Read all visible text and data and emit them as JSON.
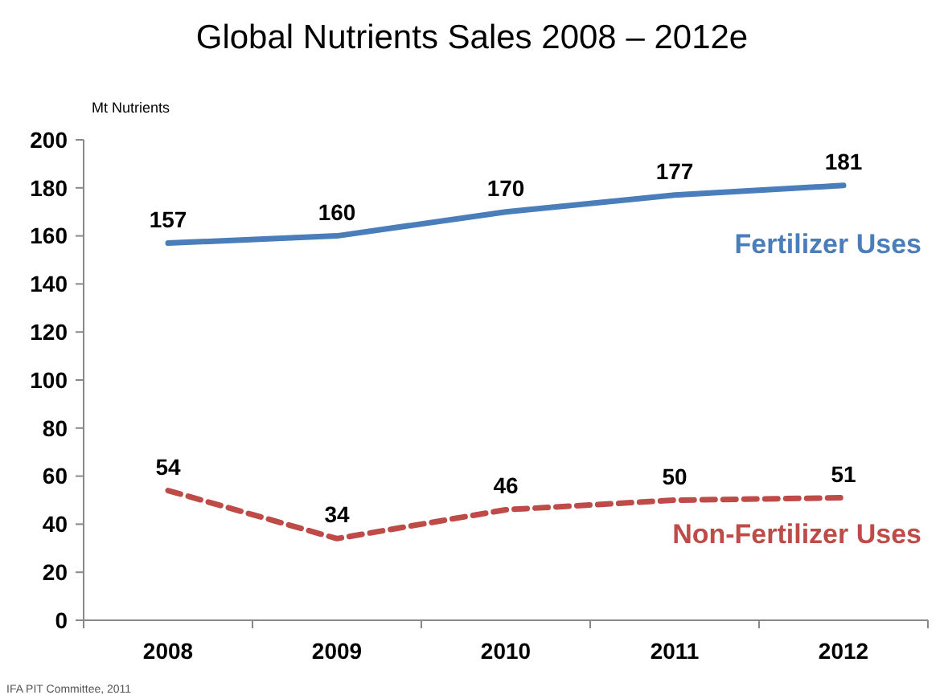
{
  "chart_data": {
    "type": "line",
    "title": "Global Nutrients Sales 2008 – 2012e",
    "ylabel": "Mt Nutrients",
    "categories": [
      "2008",
      "2009",
      "2010",
      "2011",
      "2012"
    ],
    "series": [
      {
        "name": "Fertilizer Uses",
        "color": "#4a7ebb",
        "values": [
          157,
          160,
          170,
          177,
          181
        ],
        "line_style": "solid"
      },
      {
        "name": "Non-Fertilizer Uses",
        "color": "#be4b48",
        "values": [
          54,
          34,
          46,
          50,
          51
        ],
        "line_style": "dashed"
      }
    ],
    "ylim": [
      0,
      200
    ],
    "yticks": [
      0,
      20,
      40,
      60,
      80,
      100,
      120,
      140,
      160,
      180,
      200
    ],
    "grid": false,
    "marker": "none",
    "data_labels": true,
    "annotations": [
      "IFA PIT Committee, 2011"
    ]
  }
}
